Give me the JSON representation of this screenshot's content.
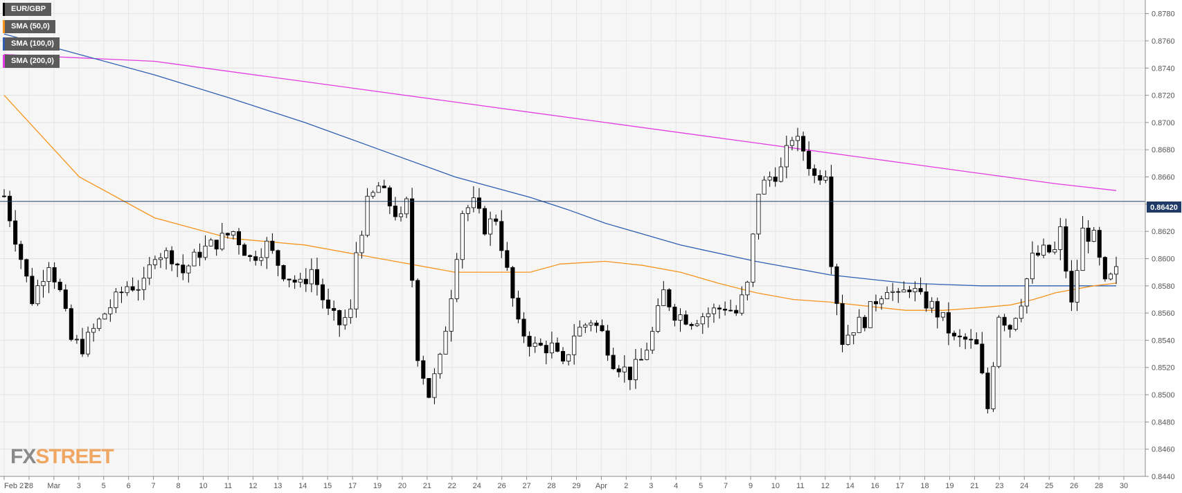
{
  "chart_data": {
    "type": "candlestick",
    "title": "",
    "legend": [
      {
        "label": "EUR/GBP",
        "color": "#000000"
      },
      {
        "label": "SMA (50,0)",
        "color": "#f7941d"
      },
      {
        "label": "SMA (100,0)",
        "color": "#2c5fb3"
      },
      {
        "label": "SMA (200,0)",
        "color": "#e23ce2"
      }
    ],
    "ylim": [
      0.844,
      0.879
    ],
    "y_ticks": [
      "0.8440",
      "0.8460",
      "0.8480",
      "0.8500",
      "0.8520",
      "0.8540",
      "0.8560",
      "0.8580",
      "0.8600",
      "0.8620",
      "0.8640",
      "0.8660",
      "0.8680",
      "0.8700",
      "0.8720",
      "0.8740",
      "0.8760",
      "0.8780"
    ],
    "x_ticks": [
      "Feb 27",
      "28",
      "Mar",
      "3",
      "5",
      "6",
      "7",
      "8",
      "10",
      "11",
      "12",
      "13",
      "14",
      "15",
      "17",
      "19",
      "20",
      "21",
      "22",
      "24",
      "26",
      "27",
      "28",
      "29",
      "Apr",
      "2",
      "3",
      "4",
      "5",
      "7",
      "9",
      "10",
      "11",
      "12",
      "14",
      "16",
      "17",
      "18",
      "19",
      "21",
      "23",
      "24",
      "25",
      "26",
      "28",
      "30"
    ],
    "current_price": "0.86420",
    "current_price_value": 0.8642,
    "candle_count": 200,
    "anchors": [
      [
        0,
        0.8646
      ],
      [
        5,
        0.857
      ],
      [
        8,
        0.8598
      ],
      [
        10,
        0.8575
      ],
      [
        12,
        0.854
      ],
      [
        14,
        0.8535
      ],
      [
        18,
        0.856
      ],
      [
        22,
        0.858
      ],
      [
        25,
        0.858
      ],
      [
        27,
        0.8605
      ],
      [
        30,
        0.8602
      ],
      [
        32,
        0.859
      ],
      [
        35,
        0.8605
      ],
      [
        38,
        0.8612
      ],
      [
        41,
        0.862
      ],
      [
        44,
        0.86
      ],
      [
        47,
        0.861
      ],
      [
        50,
        0.859
      ],
      [
        53,
        0.858
      ],
      [
        55,
        0.8592
      ],
      [
        58,
        0.856
      ],
      [
        60,
        0.8552
      ],
      [
        62,
        0.856
      ],
      [
        63,
        0.8605
      ],
      [
        65,
        0.864
      ],
      [
        67,
        0.8653
      ],
      [
        69,
        0.864
      ],
      [
        71,
        0.8628
      ],
      [
        72,
        0.864
      ],
      [
        74,
        0.853
      ],
      [
        76,
        0.85
      ],
      [
        78,
        0.8525
      ],
      [
        80,
        0.8575
      ],
      [
        82,
        0.8635
      ],
      [
        84,
        0.864
      ],
      [
        86,
        0.8623
      ],
      [
        88,
        0.863
      ],
      [
        90,
        0.859
      ],
      [
        92,
        0.855
      ],
      [
        95,
        0.8535
      ],
      [
        98,
        0.8535
      ],
      [
        100,
        0.852
      ],
      [
        102,
        0.8545
      ],
      [
        105,
        0.8555
      ],
      [
        107,
        0.8545
      ],
      [
        109,
        0.8525
      ],
      [
        112,
        0.8515
      ],
      [
        114,
        0.8525
      ],
      [
        116,
        0.8545
      ],
      [
        118,
        0.8575
      ],
      [
        120,
        0.856
      ],
      [
        123,
        0.8555
      ],
      [
        126,
        0.856
      ],
      [
        129,
        0.8565
      ],
      [
        131,
        0.856
      ],
      [
        133,
        0.858
      ],
      [
        135,
        0.865
      ],
      [
        137,
        0.866
      ],
      [
        139,
        0.8665
      ],
      [
        141,
        0.869
      ],
      [
        143,
        0.868
      ],
      [
        145,
        0.866
      ],
      [
        147,
        0.8665
      ],
      [
        148,
        0.86
      ],
      [
        150,
        0.854
      ],
      [
        152,
        0.855
      ],
      [
        154,
        0.8555
      ],
      [
        156,
        0.857
      ],
      [
        158,
        0.858
      ],
      [
        160,
        0.857
      ],
      [
        162,
        0.858
      ],
      [
        164,
        0.857
      ],
      [
        166,
        0.8565
      ],
      [
        168,
        0.8555
      ],
      [
        170,
        0.854
      ],
      [
        172,
        0.854
      ],
      [
        174,
        0.8535
      ],
      [
        176,
        0.849
      ],
      [
        178,
        0.856
      ],
      [
        180,
        0.855
      ],
      [
        182,
        0.857
      ],
      [
        184,
        0.86
      ],
      [
        186,
        0.8605
      ],
      [
        188,
        0.8605
      ],
      [
        189,
        0.862
      ],
      [
        191,
        0.8565
      ],
      [
        193,
        0.862
      ],
      [
        195,
        0.8615
      ],
      [
        197,
        0.858
      ],
      [
        199,
        0.859
      ]
    ],
    "sma50": [
      [
        0,
        0.872
      ],
      [
        10,
        0.866
      ],
      [
        20,
        0.863
      ],
      [
        30,
        0.8615
      ],
      [
        40,
        0.861
      ],
      [
        50,
        0.86
      ],
      [
        60,
        0.859
      ],
      [
        70,
        0.859
      ],
      [
        74,
        0.8596
      ],
      [
        80,
        0.8598
      ],
      [
        85,
        0.8595
      ],
      [
        90,
        0.859
      ],
      [
        95,
        0.8582
      ],
      [
        100,
        0.8575
      ],
      [
        105,
        0.857
      ],
      [
        110,
        0.8568
      ],
      [
        115,
        0.8565
      ],
      [
        120,
        0.8562
      ],
      [
        125,
        0.8562
      ],
      [
        130,
        0.8564
      ],
      [
        134,
        0.8566
      ],
      [
        137,
        0.857
      ],
      [
        140,
        0.8575
      ],
      [
        145,
        0.858
      ],
      [
        148,
        0.8582
      ]
    ],
    "sma100": [
      [
        0,
        0.8765
      ],
      [
        10,
        0.875
      ],
      [
        20,
        0.8735
      ],
      [
        30,
        0.8718
      ],
      [
        40,
        0.87
      ],
      [
        50,
        0.868
      ],
      [
        60,
        0.866
      ],
      [
        70,
        0.8645
      ],
      [
        75,
        0.8636
      ],
      [
        80,
        0.8626
      ],
      [
        90,
        0.861
      ],
      [
        100,
        0.8598
      ],
      [
        110,
        0.8588
      ],
      [
        120,
        0.8582
      ],
      [
        130,
        0.858
      ],
      [
        140,
        0.858
      ],
      [
        148,
        0.858
      ]
    ],
    "sma200": [
      [
        0,
        0.875
      ],
      [
        20,
        0.8745
      ],
      [
        40,
        0.873
      ],
      [
        60,
        0.8715
      ],
      [
        80,
        0.87
      ],
      [
        100,
        0.8685
      ],
      [
        120,
        0.867
      ],
      [
        140,
        0.8655
      ],
      [
        148,
        0.865
      ]
    ]
  },
  "brand": {
    "fx": "FX",
    "street": "STREET"
  }
}
